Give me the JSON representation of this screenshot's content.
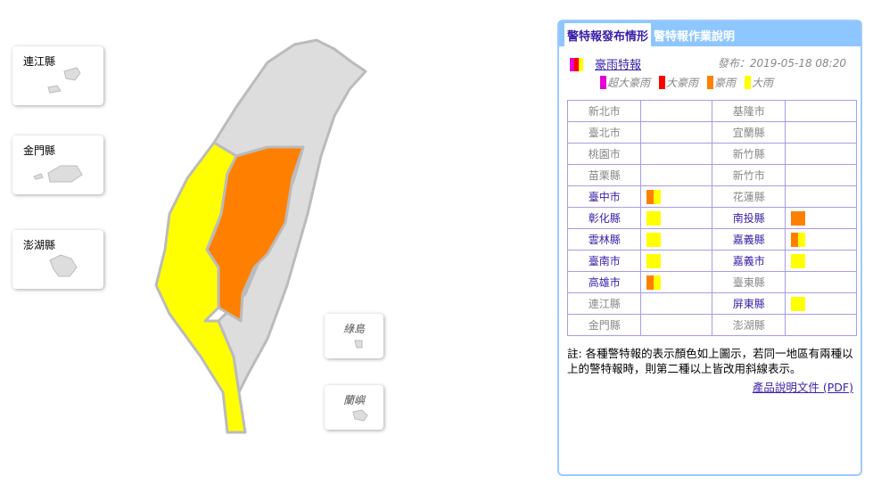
{
  "islands": [
    {
      "name": "連江縣"
    },
    {
      "name": "金門縣"
    },
    {
      "name": "澎湖縣"
    },
    {
      "name": "綠島"
    },
    {
      "name": "蘭嶼"
    }
  ],
  "colors": {
    "super_torrential": "#e600d2",
    "extra_torrential": "#ff0000",
    "torrential": "#ff7f00",
    "heavy": "#ffff00",
    "none": "#dddddd"
  },
  "tabs": [
    {
      "label": "警特報發布情形",
      "active": true
    },
    {
      "label": "警特報作業說明",
      "active": false
    }
  ],
  "warning": {
    "title": "豪雨特報",
    "published": "發布：2019-05-18 08:20",
    "legend": [
      {
        "label": "超大豪雨",
        "color": "#e600d2"
      },
      {
        "label": "大豪雨",
        "color": "#ff0000"
      },
      {
        "label": "豪雨",
        "color": "#ff7f00"
      },
      {
        "label": "大雨",
        "color": "#ffff00"
      }
    ]
  },
  "table": [
    [
      {
        "name": "新北市",
        "levels": []
      },
      {
        "name": "基隆市",
        "levels": []
      }
    ],
    [
      {
        "name": "臺北市",
        "levels": []
      },
      {
        "name": "宜蘭縣",
        "levels": []
      }
    ],
    [
      {
        "name": "桃園市",
        "levels": []
      },
      {
        "name": "新竹縣",
        "levels": []
      }
    ],
    [
      {
        "name": "苗栗縣",
        "levels": []
      },
      {
        "name": "新竹市",
        "levels": []
      }
    ],
    [
      {
        "name": "臺中市",
        "levels": [
          "#ff7f00",
          "#ffff00"
        ]
      },
      {
        "name": "花蓮縣",
        "levels": []
      }
    ],
    [
      {
        "name": "彰化縣",
        "levels": [
          "#ffff00"
        ]
      },
      {
        "name": "南投縣",
        "levels": [
          "#ff7f00"
        ]
      }
    ],
    [
      {
        "name": "雲林縣",
        "levels": [
          "#ffff00"
        ]
      },
      {
        "name": "嘉義縣",
        "levels": [
          "#ff7f00",
          "#ffff00"
        ]
      }
    ],
    [
      {
        "name": "臺南市",
        "levels": [
          "#ffff00"
        ]
      },
      {
        "name": "嘉義市",
        "levels": [
          "#ffff00"
        ]
      }
    ],
    [
      {
        "name": "高雄市",
        "levels": [
          "#ff7f00",
          "#ffff00"
        ]
      },
      {
        "name": "臺東縣",
        "levels": []
      }
    ],
    [
      {
        "name": "連江縣",
        "levels": []
      },
      {
        "name": "屏東縣",
        "levels": [
          "#ffff00"
        ]
      }
    ],
    [
      {
        "name": "金門縣",
        "levels": []
      },
      {
        "name": "澎湖縣",
        "levels": []
      }
    ]
  ],
  "note": "註: 各種警特報的表示顏色如上圖示，若同一地區有兩種以上的警特報時，則第二種以上皆改用斜線表示。",
  "pdf_link": "產品說明文件 (PDF)"
}
